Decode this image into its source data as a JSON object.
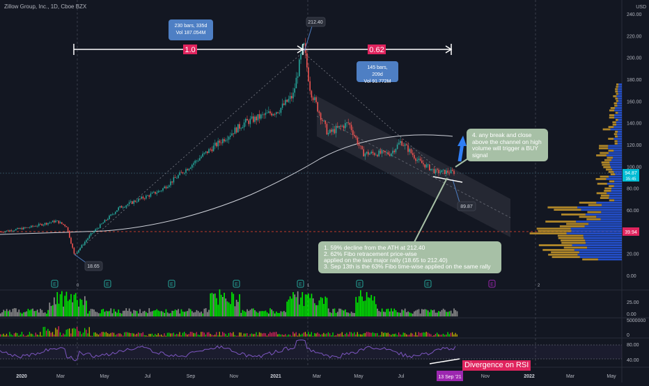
{
  "header": {
    "symbol_title": "Zillow Group, Inc., 1D, Cboe BZX",
    "currency": "USD"
  },
  "price_axis": {
    "labels": [
      "240.00",
      "220.00",
      "200.00",
      "180.00",
      "160.00",
      "140.00",
      "120.00",
      "100.00",
      "80.00",
      "60.00",
      "40.00",
      "20.00",
      "0.00"
    ],
    "last_price_label": "94.87",
    "countdown_label": "35:45",
    "hline_price_label": "39.94"
  },
  "volume_axis": {
    "labels": [
      "25.00",
      "0.00"
    ]
  },
  "ind2_axis": {
    "labels": [
      "5000000",
      "0"
    ]
  },
  "rsi_axis": {
    "labels": [
      "80.00",
      "40.00"
    ]
  },
  "time_axis": {
    "labels": [
      "2020",
      "Mar",
      "May",
      "Jul",
      "Sep",
      "Nov",
      "2021",
      "Mar",
      "May",
      "Jul",
      "Sep",
      "Nov",
      "2022",
      "Mar",
      "May"
    ],
    "highlight_label": "13 Sep '21"
  },
  "annotations": {
    "fib_left": "1.0",
    "fib_right": "0.62",
    "stats_left": {
      "line1": "230 bars, 335d",
      "line2": "Vol 187.054M"
    },
    "stats_right": {
      "line1": "145 bars, 209d",
      "line2": "Vol 91.772M"
    },
    "peak_label": "212.40",
    "low_label": "18.65",
    "target_label": "89.87",
    "note_buy": "4. any break and close above the channel on high volume will trigger a BUY signal",
    "note_summary": {
      "line1": "1. 59% decline from the ATH at 212.40",
      "line2": "2. 62% Fibo retracement price-wise",
      "line3": "applied on the last major rally (18.65 to 212.40)",
      "line4": "3. Sep 13th is the 63% Fibo time-wise applied on the same rally"
    },
    "divergence": "Divergence on RSI",
    "earnings_marker": "E",
    "session_markers": [
      "0",
      "1",
      "2"
    ]
  },
  "chart_data": {
    "type": "candlestick",
    "title": "Zillow Group, Inc., 1D, Cboe BZX",
    "ylim": [
      0,
      250
    ],
    "key_points": [
      {
        "date": "2020-03",
        "label": "low",
        "value": 18.65
      },
      {
        "date": "2021-02",
        "label": "ATH",
        "value": 212.4
      },
      {
        "date": "2021-09-13",
        "label": "target",
        "value": 89.87
      }
    ],
    "last_price": 94.87,
    "horizontal_line": 39.94,
    "colors": {
      "up": "#26a69a",
      "down": "#ef5350",
      "fib_badge": "#e0245e",
      "sma": "#d1d4dc",
      "volume_up": "#00e600",
      "volume_down": "#8a8a8a",
      "rsi": "#7e57c2"
    }
  }
}
